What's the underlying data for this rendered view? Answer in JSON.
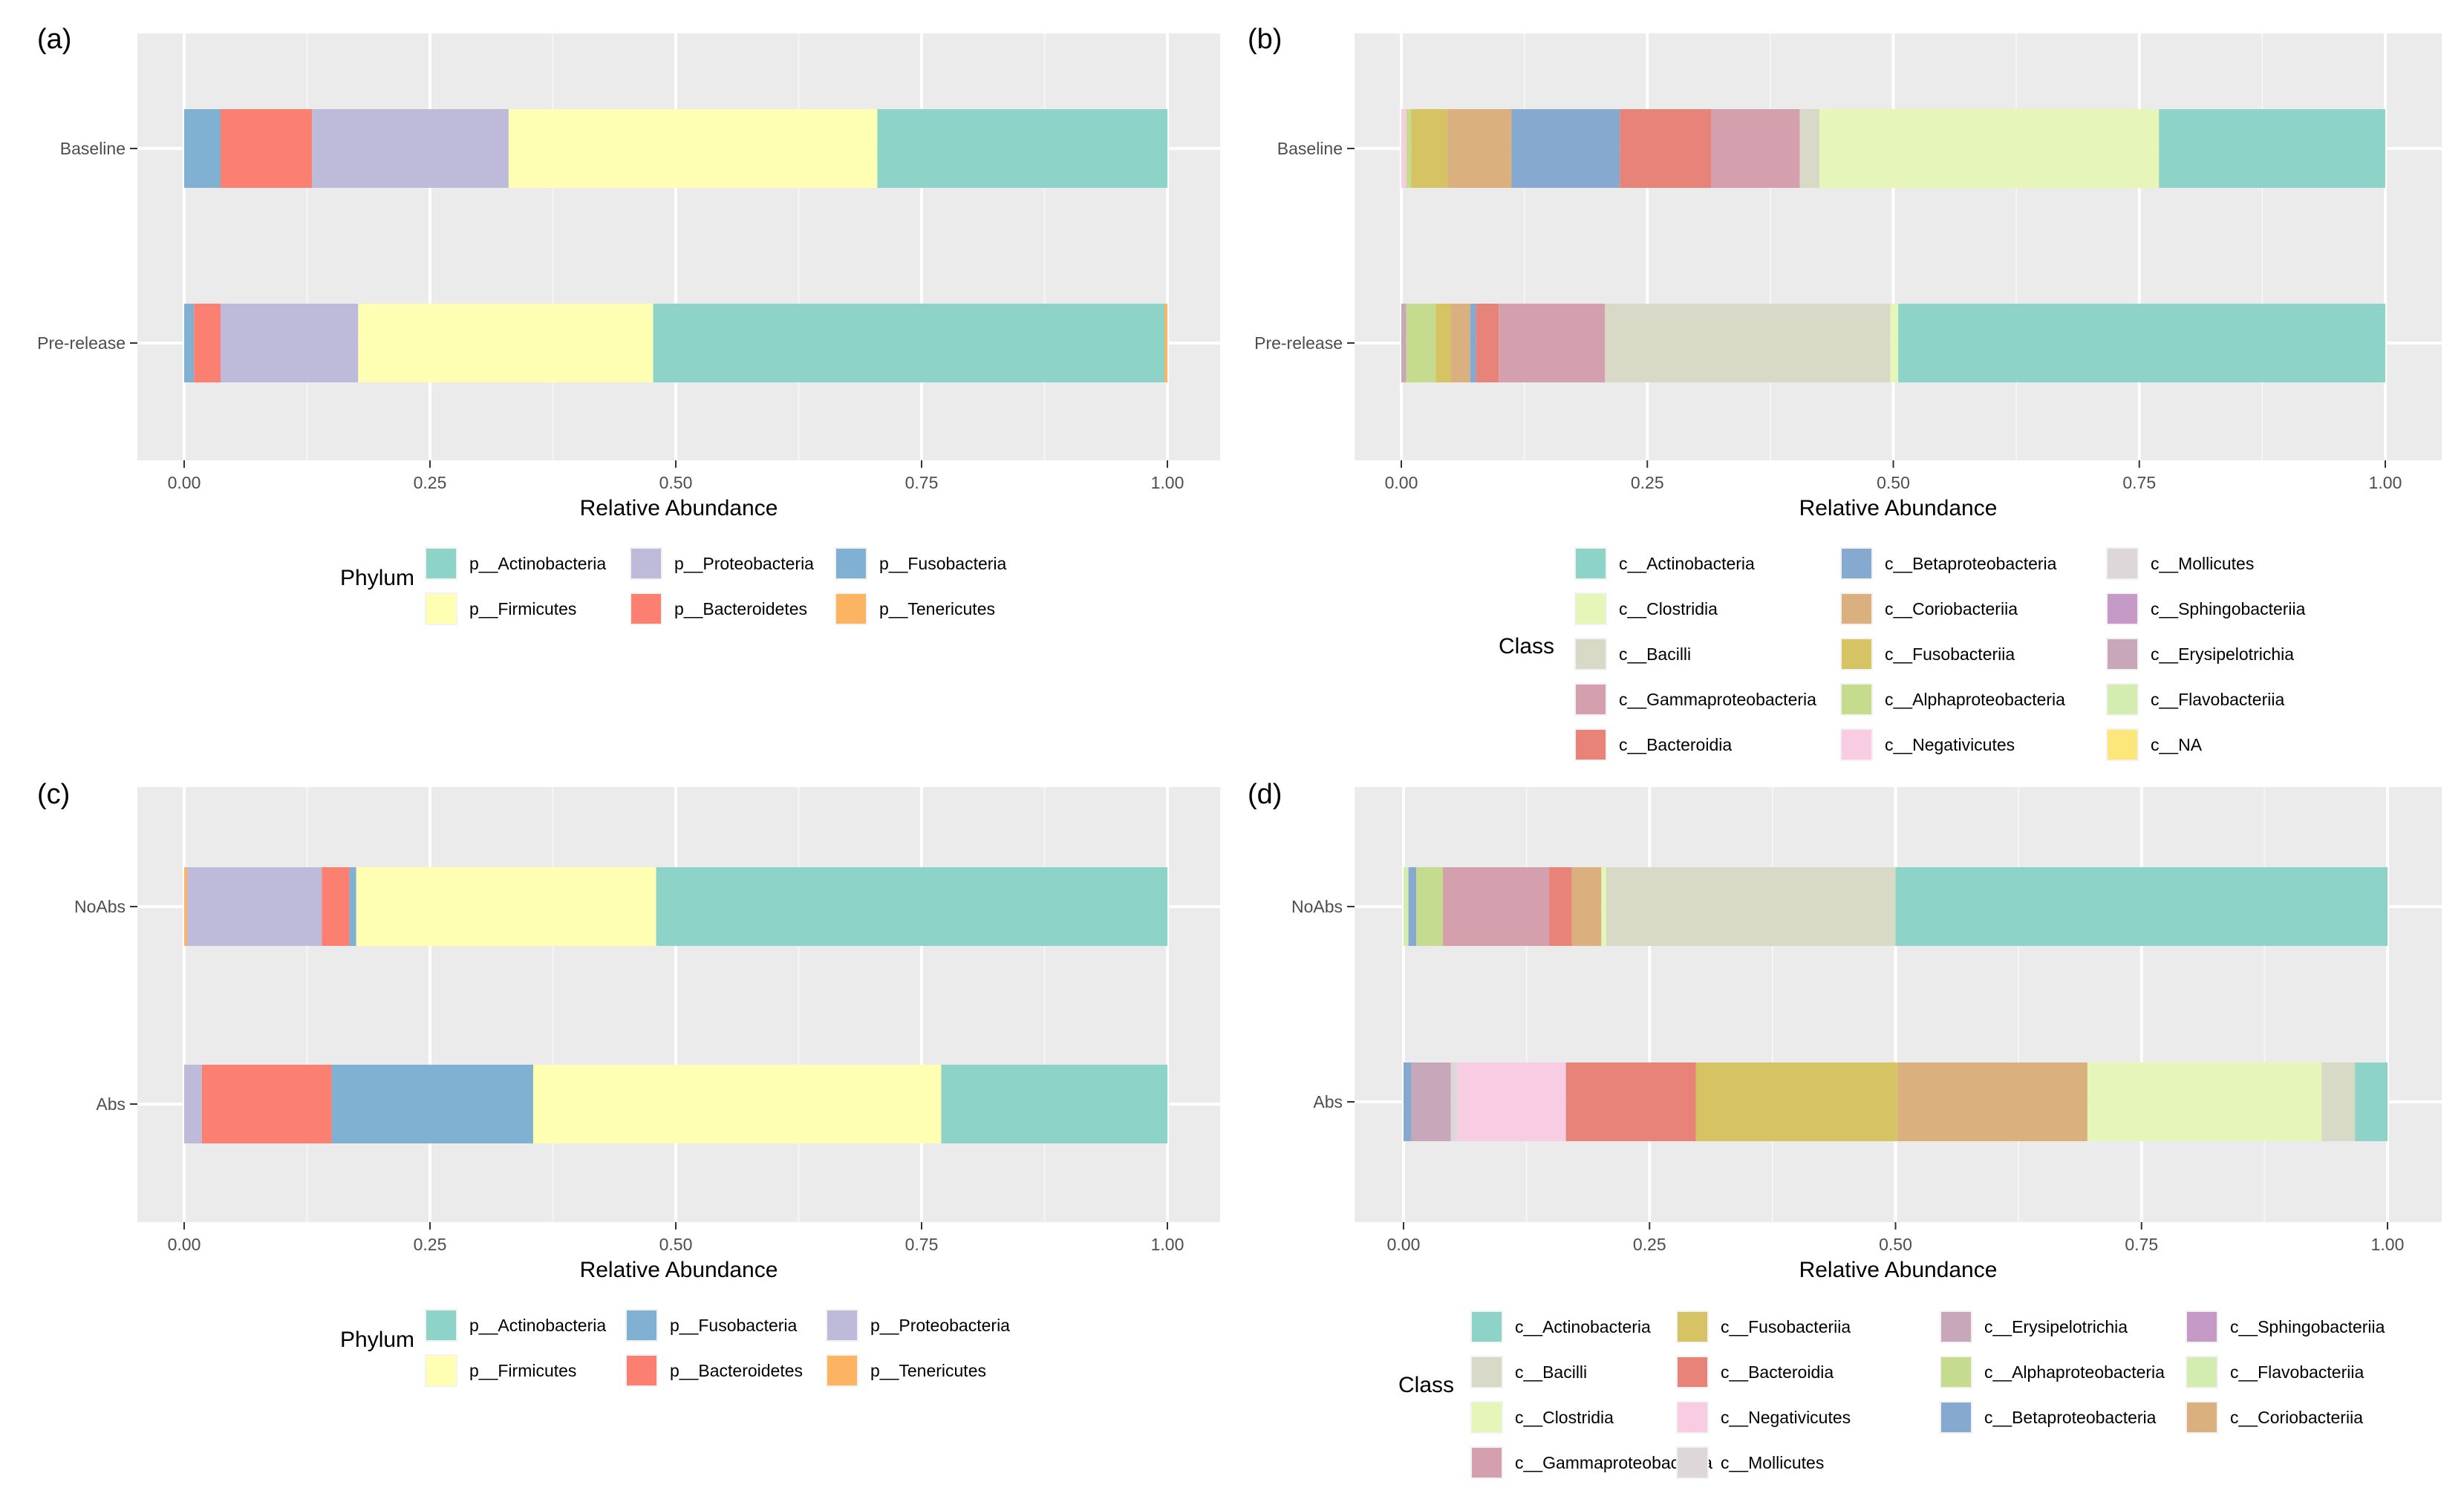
{
  "colors": {
    "p__Actinobacteria": "#8dd3c7",
    "p__Firmicutes": "#ffffb3",
    "p__Proteobacteria": "#bebada",
    "p__Bacteroidetes": "#fb8072",
    "p__Fusobacteria": "#80b1d3",
    "p__Tenericutes": "#fdb462",
    "c__Actinobacteria": "#8dd3c7",
    "c__Clostridia": "#e6f5b8",
    "c__Bacilli": "#d9d9c8",
    "c__Gammaproteobacteria": "#d4a0ae",
    "c__Bacteroidia": "#e8837a",
    "c__Betaproteobacteria": "#86a9cf",
    "c__Coriobacteriia": "#d9b07e",
    "c__Fusobacteriia": "#d6c364",
    "c__Alphaproteobacteria": "#c5dc8f",
    "c__Negativicutes": "#f8cde3",
    "c__Mollicutes": "#ddd7d9",
    "c__Sphingobacteriia": "#c59ac7",
    "c__Erysipelotrichia": "#c7a7b9",
    "c__Flavobacteriia": "#d3ecb0",
    "c__NA": "#fde67a"
  },
  "chart_data": [
    {
      "panel": "(a)",
      "type": "bar",
      "orientation": "horizontal",
      "stacked": true,
      "xlabel": "Relative Abundance",
      "xlim": [
        0,
        1
      ],
      "xticks": [
        "0.00",
        "0.25",
        "0.50",
        "0.75",
        "1.00"
      ],
      "categories": [
        "Baseline",
        "Pre-release"
      ],
      "legend_title": "Phylum",
      "legend": [
        "p__Actinobacteria",
        "p__Proteobacteria",
        "p__Fusobacteria",
        "p__Firmicutes",
        "p__Bacteroidetes",
        "p__Tenericutes"
      ],
      "legend_cols": 3,
      "stack_order": [
        "p__Fusobacteria",
        "p__Bacteroidetes",
        "p__Proteobacteria",
        "p__Firmicutes",
        "p__Actinobacteria",
        "p__Tenericutes"
      ],
      "series": [
        {
          "name": "p__Tenericutes",
          "values": [
            0.0,
            0.003
          ]
        },
        {
          "name": "p__Fusobacteria",
          "values": [
            0.037,
            0.01
          ]
        },
        {
          "name": "p__Bacteroidetes",
          "values": [
            0.093,
            0.027
          ]
        },
        {
          "name": "p__Proteobacteria",
          "values": [
            0.2,
            0.14
          ]
        },
        {
          "name": "p__Firmicutes",
          "values": [
            0.375,
            0.3
          ]
        },
        {
          "name": "p__Actinobacteria",
          "values": [
            0.295,
            0.52
          ]
        }
      ]
    },
    {
      "panel": "(b)",
      "type": "bar",
      "orientation": "horizontal",
      "stacked": true,
      "xlabel": "Relative Abundance",
      "xlim": [
        0,
        1
      ],
      "xticks": [
        "0.00",
        "0.25",
        "0.50",
        "0.75",
        "1.00"
      ],
      "categories": [
        "Baseline",
        "Pre-release"
      ],
      "legend_title": "Class",
      "legend": [
        "c__Actinobacteria",
        "c__Betaproteobacteria",
        "c__Mollicutes",
        "c__Clostridia",
        "c__Coriobacteriia",
        "c__Sphingobacteriia",
        "c__Bacilli",
        "c__Fusobacteriia",
        "c__Erysipelotrichia",
        "c__Gammaproteobacteria",
        "c__Alphaproteobacteria",
        "c__Flavobacteriia",
        "c__Bacteroidia",
        "c__Negativicutes",
        "c__NA"
      ],
      "legend_cols": 3,
      "stack_order": [
        "c__Negativicutes",
        "c__Erysipelotrichia",
        "c__Alphaproteobacteria",
        "c__Fusobacteriia",
        "c__Coriobacteriia",
        "c__Betaproteobacteria",
        "c__Bacteroidia",
        "c__Gammaproteobacteria",
        "c__Bacilli",
        "c__Clostridia",
        "c__Actinobacteria"
      ],
      "series": [
        {
          "name": "c__Negativicutes",
          "values": [
            0.005,
            0.0
          ]
        },
        {
          "name": "c__Erysipelotrichia",
          "values": [
            0.0,
            0.005
          ]
        },
        {
          "name": "c__Alphaproteobacteria",
          "values": [
            0.005,
            0.03
          ]
        },
        {
          "name": "c__Fusobacteriia",
          "values": [
            0.037,
            0.015
          ]
        },
        {
          "name": "c__Coriobacteriia",
          "values": [
            0.065,
            0.02
          ]
        },
        {
          "name": "c__Betaproteobacteria",
          "values": [
            0.11,
            0.006
          ]
        },
        {
          "name": "c__Bacteroidia",
          "values": [
            0.093,
            0.023
          ]
        },
        {
          "name": "c__Gammaproteobacteria",
          "values": [
            0.09,
            0.108
          ]
        },
        {
          "name": "c__Bacilli",
          "values": [
            0.02,
            0.29
          ]
        },
        {
          "name": "c__Clostridia",
          "values": [
            0.345,
            0.008
          ]
        },
        {
          "name": "c__Actinobacteria",
          "values": [
            0.23,
            0.495
          ]
        }
      ]
    },
    {
      "panel": "(c)",
      "type": "bar",
      "orientation": "horizontal",
      "stacked": true,
      "xlabel": "Relative Abundance",
      "xlim": [
        0,
        1
      ],
      "xticks": [
        "0.00",
        "0.25",
        "0.50",
        "0.75",
        "1.00"
      ],
      "categories": [
        "NoAbs",
        "Abs"
      ],
      "legend_title": "Phylum",
      "legend": [
        "p__Actinobacteria",
        "p__Fusobacteria",
        "p__Proteobacteria",
        "p__Firmicutes",
        "p__Bacteroidetes",
        "p__Tenericutes"
      ],
      "legend_cols": 3,
      "stack_order": [
        "p__Tenericutes",
        "p__Proteobacteria",
        "p__Bacteroidetes",
        "p__Fusobacteria",
        "p__Firmicutes",
        "p__Actinobacteria"
      ],
      "series": [
        {
          "name": "p__Tenericutes",
          "values": [
            0.003,
            0.0
          ]
        },
        {
          "name": "p__Proteobacteria",
          "values": [
            0.137,
            0.018
          ]
        },
        {
          "name": "p__Bacteroidetes",
          "values": [
            0.028,
            0.132
          ]
        },
        {
          "name": "p__Fusobacteria",
          "values": [
            0.007,
            0.205
          ]
        },
        {
          "name": "p__Firmicutes",
          "values": [
            0.305,
            0.415
          ]
        },
        {
          "name": "p__Actinobacteria",
          "values": [
            0.52,
            0.23
          ]
        }
      ]
    },
    {
      "panel": "(d)",
      "type": "bar",
      "orientation": "horizontal",
      "stacked": true,
      "xlabel": "Relative Abundance",
      "xlim": [
        0,
        1
      ],
      "xticks": [
        "0.00",
        "0.25",
        "0.50",
        "0.75",
        "1.00"
      ],
      "categories": [
        "NoAbs",
        "Abs"
      ],
      "legend_title": "Class",
      "legend": [
        "c__Actinobacteria",
        "c__Fusobacteriia",
        "c__Erysipelotrichia",
        "c__Sphingobacteriia",
        "c__Bacilli",
        "c__Bacteroidia",
        "c__Alphaproteobacteria",
        "c__Flavobacteriia",
        "c__Clostridia",
        "c__Negativicutes",
        "c__Betaproteobacteria",
        "c__Coriobacteriia",
        "c__Gammaproteobacteria",
        "c__Mollicutes"
      ],
      "legend_cols": 4,
      "stack_order": [
        "c__Flavobacteriia",
        "c__Betaproteobacteria",
        "c__Erysipelotrichia",
        "c__Mollicutes",
        "c__Alphaproteobacteria",
        "c__Gammaproteobacteria",
        "c__Negativicutes",
        "c__Bacteroidia",
        "c__Fusobacteriia",
        "c__Coriobacteriia",
        "c__Clostridia",
        "c__Bacilli",
        "c__Actinobacteria"
      ],
      "series": [
        {
          "name": "c__Flavobacteriia",
          "values": [
            0.005,
            0.0
          ]
        },
        {
          "name": "c__Betaproteobacteria",
          "values": [
            0.008,
            0.008
          ]
        },
        {
          "name": "c__Erysipelotrichia",
          "values": [
            0.0,
            0.04
          ]
        },
        {
          "name": "c__Mollicutes",
          "values": [
            0.0,
            0.007
          ]
        },
        {
          "name": "c__Alphaproteobacteria",
          "values": [
            0.027,
            0.0
          ]
        },
        {
          "name": "c__Gammaproteobacteria",
          "values": [
            0.108,
            0.0
          ]
        },
        {
          "name": "c__Negativicutes",
          "values": [
            0.0,
            0.11
          ]
        },
        {
          "name": "c__Bacteroidia",
          "values": [
            0.023,
            0.132
          ]
        },
        {
          "name": "c__Fusobacteriia",
          "values": [
            0.0,
            0.205
          ]
        },
        {
          "name": "c__Coriobacteriia",
          "values": [
            0.03,
            0.193
          ]
        },
        {
          "name": "c__Clostridia",
          "values": [
            0.005,
            0.238
          ]
        },
        {
          "name": "c__Bacilli",
          "values": [
            0.294,
            0.034
          ]
        },
        {
          "name": "c__Actinobacteria",
          "values": [
            0.5,
            0.033
          ]
        }
      ]
    }
  ]
}
